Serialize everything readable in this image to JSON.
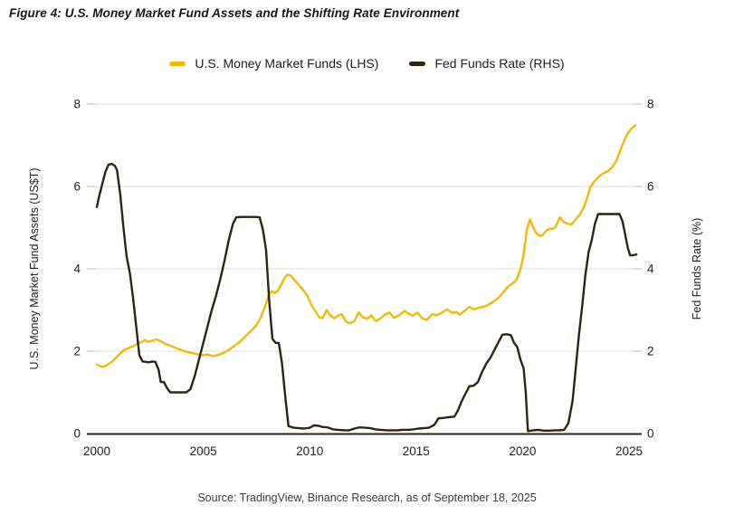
{
  "figure": {
    "title": "Figure 4: U.S. Money Market Fund Assets and the Shifting Rate Environment",
    "source": "Source: TradingView, Binance Research, as of September 18, 2025"
  },
  "colors": {
    "mmf_yellow": "#F0B90B",
    "fed_dark": "#2B2515",
    "gridline": "#dcdcdc",
    "tick_mark": "#c8c8c8"
  },
  "chart_data": {
    "type": "line",
    "title": "Figure 4: U.S. Money Market Fund Assets and the Shifting Rate Environment",
    "grid": true,
    "legend_position": "top-center",
    "x_axis": {
      "ticks": [
        2000,
        2005,
        2010,
        2015,
        2020,
        2025
      ],
      "range": [
        2000,
        2025.6
      ]
    },
    "y_left": {
      "label": "U.S. Money Market Fund Assets (US$T)",
      "ticks": [
        0,
        2,
        4,
        6,
        8
      ],
      "range": [
        0,
        8
      ]
    },
    "y_right": {
      "label": "Fed Funds Rate (%)",
      "ticks": [
        0,
        2,
        4,
        6,
        8
      ],
      "range": [
        0,
        8
      ]
    },
    "legend": [
      {
        "label": "U.S. Money Market Funds (LHS)",
        "color": "#F0B90B"
      },
      {
        "label": "Fed Funds Rate (RHS)",
        "color": "#2B2515"
      }
    ],
    "series": [
      {
        "name": "U.S. Money Market Funds (LHS)",
        "axis": "left",
        "unit": "US$T",
        "color": "#F0B90B",
        "points": [
          [
            2000.0,
            1.68
          ],
          [
            2000.15,
            1.64
          ],
          [
            2000.3,
            1.62
          ],
          [
            2000.5,
            1.67
          ],
          [
            2000.7,
            1.74
          ],
          [
            2000.9,
            1.84
          ],
          [
            2001.1,
            1.95
          ],
          [
            2001.3,
            2.03
          ],
          [
            2001.5,
            2.08
          ],
          [
            2001.7,
            2.12
          ],
          [
            2001.9,
            2.18
          ],
          [
            2002.1,
            2.22
          ],
          [
            2002.25,
            2.27
          ],
          [
            2002.4,
            2.23
          ],
          [
            2002.6,
            2.25
          ],
          [
            2002.8,
            2.29
          ],
          [
            2003.0,
            2.24
          ],
          [
            2003.2,
            2.18
          ],
          [
            2003.5,
            2.12
          ],
          [
            2003.8,
            2.06
          ],
          [
            2004.1,
            2.0
          ],
          [
            2004.4,
            1.96
          ],
          [
            2004.7,
            1.93
          ],
          [
            2004.95,
            1.9
          ],
          [
            2005.2,
            1.92
          ],
          [
            2005.45,
            1.88
          ],
          [
            2005.7,
            1.91
          ],
          [
            2005.95,
            1.96
          ],
          [
            2006.2,
            2.03
          ],
          [
            2006.45,
            2.12
          ],
          [
            2006.7,
            2.22
          ],
          [
            2006.9,
            2.32
          ],
          [
            2007.1,
            2.42
          ],
          [
            2007.3,
            2.52
          ],
          [
            2007.5,
            2.64
          ],
          [
            2007.7,
            2.82
          ],
          [
            2007.9,
            3.08
          ],
          [
            2008.05,
            3.32
          ],
          [
            2008.2,
            3.46
          ],
          [
            2008.35,
            3.41
          ],
          [
            2008.5,
            3.46
          ],
          [
            2008.65,
            3.6
          ],
          [
            2008.8,
            3.76
          ],
          [
            2008.95,
            3.86
          ],
          [
            2009.1,
            3.84
          ],
          [
            2009.3,
            3.72
          ],
          [
            2009.5,
            3.6
          ],
          [
            2009.7,
            3.48
          ],
          [
            2009.9,
            3.34
          ],
          [
            2010.1,
            3.1
          ],
          [
            2010.3,
            2.94
          ],
          [
            2010.45,
            2.82
          ],
          [
            2010.6,
            2.8
          ],
          [
            2010.8,
            3.0
          ],
          [
            2010.95,
            2.88
          ],
          [
            2011.15,
            2.8
          ],
          [
            2011.35,
            2.87
          ],
          [
            2011.5,
            2.9
          ],
          [
            2011.7,
            2.72
          ],
          [
            2011.9,
            2.68
          ],
          [
            2012.1,
            2.73
          ],
          [
            2012.3,
            2.94
          ],
          [
            2012.5,
            2.82
          ],
          [
            2012.7,
            2.79
          ],
          [
            2012.9,
            2.87
          ],
          [
            2013.1,
            2.73
          ],
          [
            2013.3,
            2.79
          ],
          [
            2013.55,
            2.89
          ],
          [
            2013.75,
            2.94
          ],
          [
            2013.95,
            2.81
          ],
          [
            2014.2,
            2.87
          ],
          [
            2014.45,
            2.98
          ],
          [
            2014.65,
            2.91
          ],
          [
            2014.85,
            2.86
          ],
          [
            2015.05,
            2.94
          ],
          [
            2015.3,
            2.79
          ],
          [
            2015.5,
            2.76
          ],
          [
            2015.75,
            2.9
          ],
          [
            2015.95,
            2.87
          ],
          [
            2016.2,
            2.93
          ],
          [
            2016.45,
            3.02
          ],
          [
            2016.7,
            2.93
          ],
          [
            2016.9,
            2.95
          ],
          [
            2017.05,
            2.89
          ],
          [
            2017.3,
            2.99
          ],
          [
            2017.5,
            3.08
          ],
          [
            2017.7,
            3.01
          ],
          [
            2017.9,
            3.05
          ],
          [
            2018.1,
            3.07
          ],
          [
            2018.3,
            3.1
          ],
          [
            2018.5,
            3.16
          ],
          [
            2018.7,
            3.23
          ],
          [
            2018.9,
            3.31
          ],
          [
            2019.1,
            3.43
          ],
          [
            2019.3,
            3.56
          ],
          [
            2019.5,
            3.63
          ],
          [
            2019.7,
            3.72
          ],
          [
            2019.9,
            3.98
          ],
          [
            2020.05,
            4.35
          ],
          [
            2020.2,
            4.95
          ],
          [
            2020.35,
            5.2
          ],
          [
            2020.5,
            5.0
          ],
          [
            2020.65,
            4.86
          ],
          [
            2020.8,
            4.8
          ],
          [
            2020.95,
            4.82
          ],
          [
            2021.1,
            4.92
          ],
          [
            2021.25,
            4.97
          ],
          [
            2021.4,
            4.97
          ],
          [
            2021.55,
            5.02
          ],
          [
            2021.75,
            5.25
          ],
          [
            2021.9,
            5.15
          ],
          [
            2022.1,
            5.1
          ],
          [
            2022.3,
            5.08
          ],
          [
            2022.5,
            5.2
          ],
          [
            2022.7,
            5.32
          ],
          [
            2022.9,
            5.52
          ],
          [
            2023.05,
            5.75
          ],
          [
            2023.2,
            6.0
          ],
          [
            2023.4,
            6.14
          ],
          [
            2023.6,
            6.25
          ],
          [
            2023.8,
            6.32
          ],
          [
            2024.0,
            6.37
          ],
          [
            2024.2,
            6.46
          ],
          [
            2024.4,
            6.62
          ],
          [
            2024.55,
            6.82
          ],
          [
            2024.7,
            7.02
          ],
          [
            2024.85,
            7.2
          ],
          [
            2025.0,
            7.33
          ],
          [
            2025.15,
            7.42
          ],
          [
            2025.3,
            7.48
          ]
        ]
      },
      {
        "name": "Fed Funds Rate (RHS)",
        "axis": "right",
        "unit": "%",
        "color": "#2B2515",
        "points": [
          [
            2000.0,
            5.5
          ],
          [
            2000.1,
            5.75
          ],
          [
            2000.25,
            6.05
          ],
          [
            2000.4,
            6.35
          ],
          [
            2000.55,
            6.53
          ],
          [
            2000.7,
            6.55
          ],
          [
            2000.85,
            6.5
          ],
          [
            2000.95,
            6.4
          ],
          [
            2001.1,
            5.8
          ],
          [
            2001.25,
            5.0
          ],
          [
            2001.4,
            4.3
          ],
          [
            2001.55,
            3.9
          ],
          [
            2001.7,
            3.3
          ],
          [
            2001.85,
            2.6
          ],
          [
            2002.0,
            1.9
          ],
          [
            2002.15,
            1.75
          ],
          [
            2002.3,
            1.74
          ],
          [
            2002.45,
            1.73
          ],
          [
            2002.6,
            1.75
          ],
          [
            2002.75,
            1.74
          ],
          [
            2002.9,
            1.55
          ],
          [
            2003.0,
            1.25
          ],
          [
            2003.15,
            1.25
          ],
          [
            2003.3,
            1.1
          ],
          [
            2003.45,
            1.0
          ],
          [
            2003.7,
            1.0
          ],
          [
            2003.95,
            1.0
          ],
          [
            2004.2,
            1.0
          ],
          [
            2004.4,
            1.08
          ],
          [
            2004.6,
            1.4
          ],
          [
            2004.8,
            1.8
          ],
          [
            2005.0,
            2.2
          ],
          [
            2005.2,
            2.6
          ],
          [
            2005.4,
            3.0
          ],
          [
            2005.6,
            3.35
          ],
          [
            2005.8,
            3.75
          ],
          [
            2006.0,
            4.2
          ],
          [
            2006.2,
            4.7
          ],
          [
            2006.4,
            5.1
          ],
          [
            2006.55,
            5.25
          ],
          [
            2006.8,
            5.26
          ],
          [
            2007.1,
            5.26
          ],
          [
            2007.4,
            5.26
          ],
          [
            2007.65,
            5.25
          ],
          [
            2007.8,
            4.95
          ],
          [
            2007.95,
            4.45
          ],
          [
            2008.1,
            3.2
          ],
          [
            2008.25,
            2.3
          ],
          [
            2008.4,
            2.2
          ],
          [
            2008.55,
            2.2
          ],
          [
            2008.7,
            1.7
          ],
          [
            2008.85,
            0.9
          ],
          [
            2009.0,
            0.18
          ],
          [
            2009.25,
            0.14
          ],
          [
            2009.5,
            0.13
          ],
          [
            2009.75,
            0.12
          ],
          [
            2010.0,
            0.14
          ],
          [
            2010.2,
            0.2
          ],
          [
            2010.4,
            0.19
          ],
          [
            2010.6,
            0.16
          ],
          [
            2010.85,
            0.15
          ],
          [
            2011.1,
            0.1
          ],
          [
            2011.35,
            0.09
          ],
          [
            2011.6,
            0.08
          ],
          [
            2011.85,
            0.08
          ],
          [
            2012.1,
            0.12
          ],
          [
            2012.35,
            0.15
          ],
          [
            2012.6,
            0.14
          ],
          [
            2012.85,
            0.13
          ],
          [
            2013.1,
            0.1
          ],
          [
            2013.35,
            0.09
          ],
          [
            2013.6,
            0.08
          ],
          [
            2013.85,
            0.08
          ],
          [
            2014.1,
            0.08
          ],
          [
            2014.35,
            0.09
          ],
          [
            2014.6,
            0.09
          ],
          [
            2014.85,
            0.1
          ],
          [
            2015.1,
            0.12
          ],
          [
            2015.35,
            0.13
          ],
          [
            2015.6,
            0.14
          ],
          [
            2015.85,
            0.21
          ],
          [
            2016.05,
            0.37
          ],
          [
            2016.3,
            0.38
          ],
          [
            2016.55,
            0.4
          ],
          [
            2016.8,
            0.41
          ],
          [
            2016.95,
            0.55
          ],
          [
            2017.15,
            0.8
          ],
          [
            2017.35,
            1.0
          ],
          [
            2017.5,
            1.15
          ],
          [
            2017.7,
            1.16
          ],
          [
            2017.9,
            1.25
          ],
          [
            2018.1,
            1.5
          ],
          [
            2018.3,
            1.7
          ],
          [
            2018.5,
            1.85
          ],
          [
            2018.7,
            2.05
          ],
          [
            2018.9,
            2.25
          ],
          [
            2019.05,
            2.4
          ],
          [
            2019.25,
            2.41
          ],
          [
            2019.45,
            2.39
          ],
          [
            2019.6,
            2.2
          ],
          [
            2019.75,
            2.1
          ],
          [
            2019.9,
            1.8
          ],
          [
            2020.05,
            1.58
          ],
          [
            2020.15,
            1.0
          ],
          [
            2020.25,
            0.06
          ],
          [
            2020.5,
            0.08
          ],
          [
            2020.75,
            0.09
          ],
          [
            2021.0,
            0.07
          ],
          [
            2021.25,
            0.07
          ],
          [
            2021.5,
            0.08
          ],
          [
            2021.75,
            0.08
          ],
          [
            2021.95,
            0.09
          ],
          [
            2022.15,
            0.25
          ],
          [
            2022.35,
            0.8
          ],
          [
            2022.5,
            1.6
          ],
          [
            2022.65,
            2.4
          ],
          [
            2022.8,
            3.1
          ],
          [
            2022.95,
            3.85
          ],
          [
            2023.1,
            4.4
          ],
          [
            2023.25,
            4.7
          ],
          [
            2023.4,
            5.1
          ],
          [
            2023.55,
            5.33
          ],
          [
            2023.8,
            5.33
          ],
          [
            2024.05,
            5.33
          ],
          [
            2024.3,
            5.33
          ],
          [
            2024.55,
            5.33
          ],
          [
            2024.7,
            5.15
          ],
          [
            2024.85,
            4.75
          ],
          [
            2024.95,
            4.5
          ],
          [
            2025.05,
            4.33
          ],
          [
            2025.2,
            4.33
          ],
          [
            2025.35,
            4.35
          ]
        ]
      }
    ]
  }
}
